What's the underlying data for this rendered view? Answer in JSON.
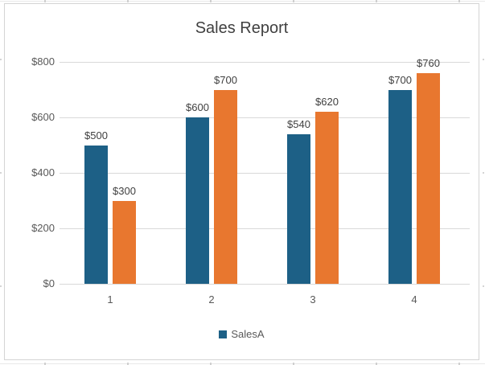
{
  "colors": {
    "series_a": "#1d6086",
    "series_b": "#e8772f",
    "gridline": "#d9d9d9",
    "title_text": "#404040",
    "axis_text": "#595959",
    "data_label_text": "#404040",
    "chart_border": "#d4d4d4",
    "background": "#ffffff"
  },
  "chart_data": {
    "type": "bar",
    "title": "Sales Report",
    "categories": [
      "1",
      "2",
      "3",
      "4"
    ],
    "series": [
      {
        "name": "SalesA",
        "color": "#1d6086",
        "values": [
          500,
          600,
          540,
          700
        ],
        "data_labels": [
          "$500",
          "$600",
          "$540",
          "$700"
        ]
      },
      {
        "name": "",
        "color": "#e8772f",
        "values": [
          300,
          700,
          620,
          760
        ],
        "data_labels": [
          "$300",
          "$700",
          "$620",
          "$760"
        ]
      }
    ],
    "xlabel": "",
    "ylabel": "",
    "ylim": [
      0,
      800
    ],
    "yticks": [
      0,
      200,
      400,
      600,
      800
    ],
    "ytick_labels": [
      "$0",
      "$200",
      "$400",
      "$600",
      "$800"
    ],
    "grid": true,
    "legend_position": "bottom-center",
    "legend_entries": [
      {
        "label": "SalesA",
        "marker_color": "#1d6086"
      }
    ]
  }
}
